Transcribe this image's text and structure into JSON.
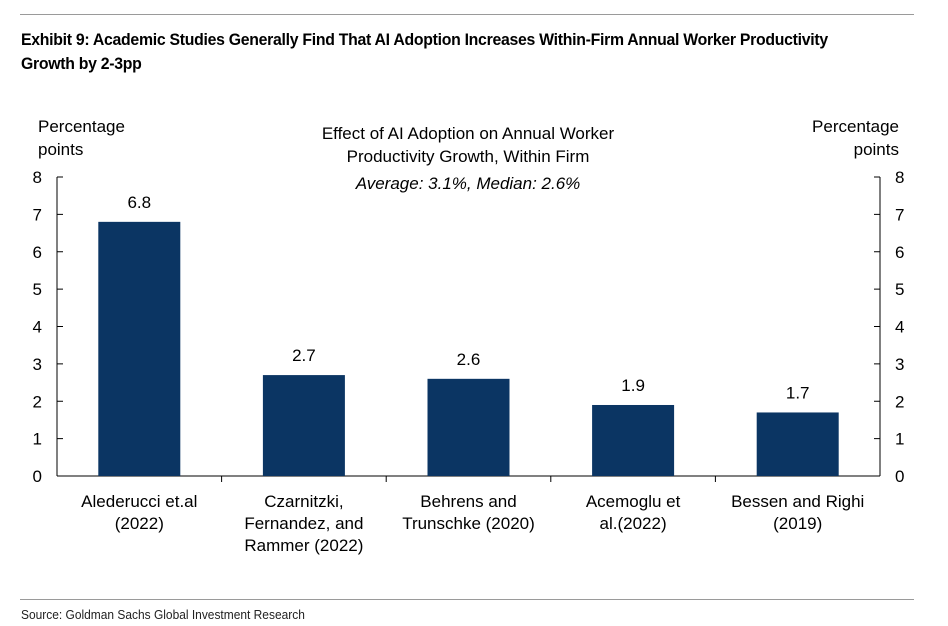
{
  "exhibit_title": "Exhibit 9: Academic Studies Generally Find That AI Adoption Increases Within-Firm Annual Worker Productivity Growth by 2-3pp",
  "source": "Source: Goldman Sachs Global Investment Research",
  "colors": {
    "bar": "#0b3563",
    "axis": "#000000",
    "rule": "#9a9a9a"
  },
  "chart_data": {
    "type": "bar",
    "title": "Effect of AI Adoption on Annual Worker Productivity Growth, Within Firm",
    "title_lines": [
      "Effect of AI Adoption on Annual Worker",
      "Productivity Growth, Within Firm"
    ],
    "subtitle": "Average: 3.1%, Median: 2.6%",
    "ylabel_left": [
      "Percentage",
      "points"
    ],
    "ylabel_right": [
      "Percentage",
      "points"
    ],
    "ylim": [
      0,
      8
    ],
    "yticks": [
      "0",
      "1",
      "2",
      "3",
      "4",
      "5",
      "6",
      "7",
      "8"
    ],
    "categories": [
      "Alederucci et.al (2022)",
      "Czarnitzki, Fernandez, and Rammer (2022)",
      "Behrens and Trunschke (2020)",
      "Acemoglu et al.(2022)",
      "Bessen and Righi (2019)"
    ],
    "category_lines": [
      [
        "Alederucci et.al",
        "(2022)"
      ],
      [
        "Czarnitzki,",
        "Fernandez, and",
        "Rammer (2022)"
      ],
      [
        "Behrens and",
        "Trunschke (2020)"
      ],
      [
        "Acemoglu et",
        "al.(2022)"
      ],
      [
        "Bessen and Righi",
        "(2019)"
      ]
    ],
    "values": [
      6.8,
      2.7,
      2.6,
      1.9,
      1.7
    ],
    "data_labels": [
      "6.8",
      "2.7",
      "2.6",
      "1.9",
      "1.7"
    ],
    "grid": false,
    "legend": "none"
  }
}
